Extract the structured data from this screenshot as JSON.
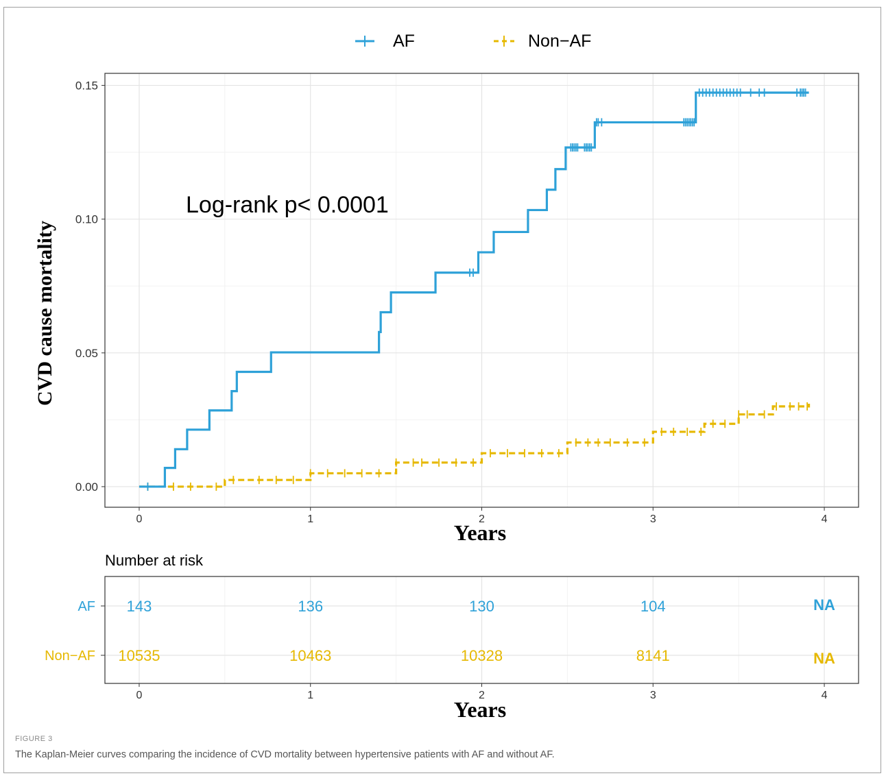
{
  "figure": {
    "label": "FIGURE 3",
    "caption": "The Kaplan-Meier curves comparing the incidence of CVD mortality between hypertensive patients with AF and without AF."
  },
  "colors": {
    "af": "#2ea1d8",
    "non_af": "#e6b800"
  },
  "chart_data": [
    {
      "type": "line",
      "title": "",
      "xlabel": "Years",
      "ylabel": "CVD cause mortality",
      "xlim": [
        -0.2,
        4.2
      ],
      "ylim": [
        -0.0077,
        0.1545
      ],
      "xticks": [
        0,
        1,
        2,
        3,
        4
      ],
      "yticks": [
        0.0,
        0.05,
        0.1,
        0.15
      ],
      "ytick_labels": [
        "0.00",
        "0.05",
        "0.10",
        "0.15"
      ],
      "grid": true,
      "legend_position": "top",
      "annotation": "Log-rank p< 0.0001",
      "series": [
        {
          "name": "AF",
          "style": "solid-step",
          "points": [
            [
              0,
              0
            ],
            [
              0.15,
              0.007
            ],
            [
              0.21,
              0.014
            ],
            [
              0.28,
              0.0213
            ],
            [
              0.41,
              0.0285
            ],
            [
              0.54,
              0.0357
            ],
            [
              0.57,
              0.0429
            ],
            [
              0.77,
              0.0502
            ],
            [
              1.4,
              0.0578
            ],
            [
              1.41,
              0.0652
            ],
            [
              1.47,
              0.0726
            ],
            [
              1.73,
              0.08
            ],
            [
              1.98,
              0.0876
            ],
            [
              2.07,
              0.0952
            ],
            [
              2.27,
              0.1034
            ],
            [
              2.38,
              0.111
            ],
            [
              2.43,
              0.1187
            ],
            [
              2.49,
              0.1268
            ],
            [
              2.66,
              0.1362
            ],
            [
              3.25,
              0.1473
            ],
            [
              3.91,
              0.1473
            ]
          ],
          "censor_x": [
            0.05,
            1.93,
            1.95,
            2.52,
            2.53,
            2.54,
            2.55,
            2.56,
            2.6,
            2.61,
            2.62,
            2.63,
            2.64,
            2.67,
            2.68,
            2.7,
            3.18,
            3.19,
            3.2,
            3.21,
            3.22,
            3.23,
            3.24,
            3.27,
            3.29,
            3.31,
            3.33,
            3.35,
            3.37,
            3.39,
            3.41,
            3.43,
            3.45,
            3.47,
            3.49,
            3.51,
            3.57,
            3.62,
            3.65,
            3.84,
            3.86,
            3.87,
            3.88,
            3.89
          ]
        },
        {
          "name": "Non-AF",
          "style": "dashed-step",
          "points": [
            [
              0,
              0
            ],
            [
              0.5,
              0.0025
            ],
            [
              1.0,
              0.005
            ],
            [
              1.5,
              0.009
            ],
            [
              2.0,
              0.0125
            ],
            [
              2.5,
              0.0165
            ],
            [
              3.0,
              0.0205
            ],
            [
              3.3,
              0.0235
            ],
            [
              3.5,
              0.027
            ],
            [
              3.7,
              0.03
            ],
            [
              3.91,
              0.031
            ]
          ],
          "censor_x": [
            0.05,
            0.2,
            0.3,
            0.45,
            0.55,
            0.7,
            0.8,
            0.9,
            1.0,
            1.1,
            1.2,
            1.3,
            1.4,
            1.5,
            1.6,
            1.65,
            1.75,
            1.85,
            1.95,
            2.05,
            2.15,
            2.25,
            2.35,
            2.45,
            2.55,
            2.62,
            2.68,
            2.75,
            2.85,
            2.95,
            3.05,
            3.12,
            3.2,
            3.28,
            3.35,
            3.42,
            3.5,
            3.55,
            3.65,
            3.72,
            3.8,
            3.85,
            3.9
          ]
        }
      ]
    },
    {
      "type": "table",
      "title": "Number at risk",
      "xlabel": "Years",
      "xticks": [
        0,
        1,
        2,
        3,
        4
      ],
      "rows": [
        {
          "name": "AF",
          "values": [
            "143",
            "136",
            "130",
            "104",
            "NA"
          ]
        },
        {
          "name": "Non−AF",
          "values": [
            "10535",
            "10463",
            "10328",
            "8141",
            "NA"
          ]
        }
      ]
    }
  ],
  "legend": {
    "items": [
      "AF",
      "Non−AF"
    ]
  }
}
